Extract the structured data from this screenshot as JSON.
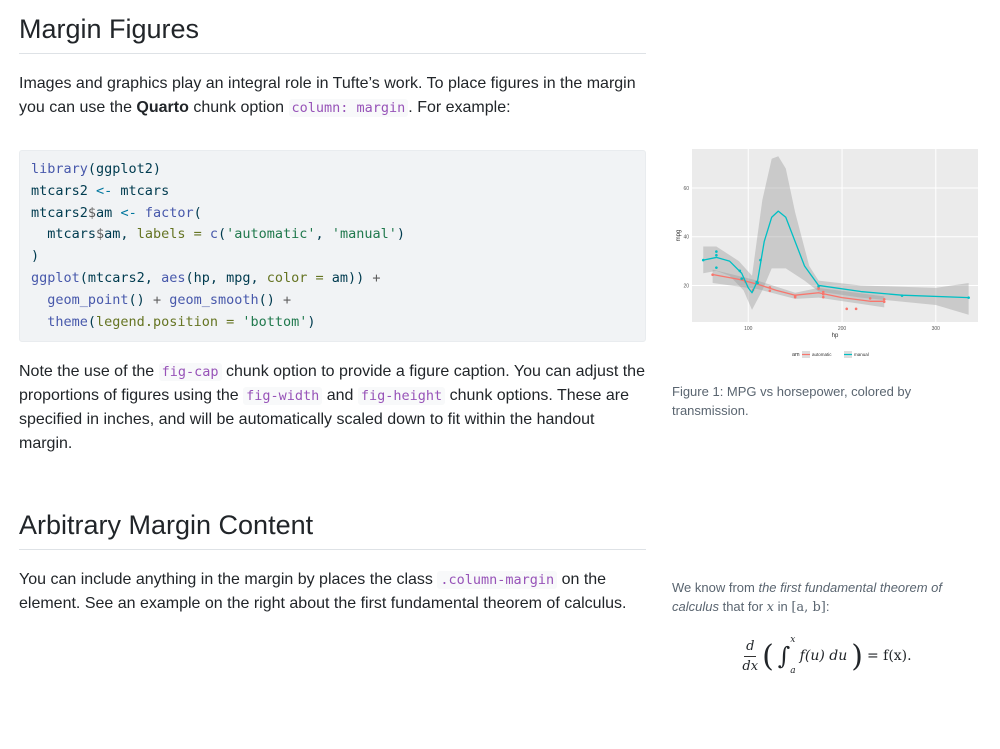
{
  "section1": {
    "title": "Margin Figures",
    "intro_a": "Images and graphics play an integral role in Tufte’s work. To place figures in the margin you can use the ",
    "intro_bold": "Quarto",
    "intro_b": " chunk option ",
    "intro_code": "column: margin",
    "intro_c": ". For example:",
    "note_a": "Note the use of the ",
    "note_code1": "fig-cap",
    "note_b": " chunk option to provide a figure caption. You can adjust the proportions of figures using the ",
    "note_code2": "fig-width",
    "note_c": " and ",
    "note_code3": "fig-height",
    "note_d": " chunk options. These are specified in inches, and will be automatically scaled down to fit within the handout margin.",
    "figure_caption": "Figure 1: MPG vs horsepower, colored by transmission."
  },
  "section2": {
    "title": "Arbitrary Margin Content",
    "text_a": "You can include anything in the margin by places the class ",
    "text_code": ".column-margin",
    "text_b": " on the element. See an example on the right about the first fundamental theorem of calculus.",
    "margin_a": "We know from ",
    "margin_em": "the first fundamental theorem of calculus",
    "margin_b": " that for ",
    "margin_x": "x",
    "margin_c": " in ",
    "margin_interval": "[a, b]",
    "margin_d": ":",
    "eq_num": "d",
    "eq_den": "dx",
    "eq_body": "f(u) du",
    "eq_upper": "x",
    "eq_lower": "a",
    "eq_rhs": "= f(x)."
  },
  "chart_data": {
    "type": "scatter",
    "xlabel": "hp",
    "ylabel": "mpg",
    "xlim": [
      40,
      345
    ],
    "ylim": [
      5,
      76
    ],
    "xticks": [
      100,
      200,
      300
    ],
    "yticks": [
      20,
      40,
      60
    ],
    "grid": true,
    "legend_position": "bottom",
    "legend_title": "am",
    "series": [
      {
        "name": "automatic",
        "color": "#f8766d",
        "points": [
          [
            62,
            24.4
          ],
          [
            95,
            22.8
          ],
          [
            97,
            21.5
          ],
          [
            105,
            18.1
          ],
          [
            110,
            21.4
          ],
          [
            123,
            19.2
          ],
          [
            123,
            17.8
          ],
          [
            150,
            15.2
          ],
          [
            150,
            15.5
          ],
          [
            175,
            18.7
          ],
          [
            175,
            19.2
          ],
          [
            180,
            16.4
          ],
          [
            180,
            17.3
          ],
          [
            180,
            15.2
          ],
          [
            205,
            10.4
          ],
          [
            215,
            10.4
          ],
          [
            230,
            14.7
          ],
          [
            245,
            14.3
          ],
          [
            245,
            13.3
          ]
        ],
        "smooth": [
          [
            62,
            24.5
          ],
          [
            90,
            22.5
          ],
          [
            110,
            20.5
          ],
          [
            130,
            18
          ],
          [
            150,
            16
          ],
          [
            175,
            17
          ],
          [
            200,
            15
          ],
          [
            230,
            13.5
          ],
          [
            245,
            13.5
          ]
        ],
        "band_upper": [
          [
            62,
            26.5
          ],
          [
            110,
            22
          ],
          [
            150,
            17
          ],
          [
            175,
            19
          ],
          [
            245,
            15.5
          ]
        ],
        "band_lower": [
          [
            62,
            21
          ],
          [
            110,
            18.5
          ],
          [
            150,
            14.5
          ],
          [
            175,
            15
          ],
          [
            245,
            11
          ]
        ]
      },
      {
        "name": "manual",
        "color": "#00bfc4",
        "points": [
          [
            52,
            30.4
          ],
          [
            66,
            33.9
          ],
          [
            66,
            32.4
          ],
          [
            66,
            27.3
          ],
          [
            91,
            26
          ],
          [
            93,
            22.8
          ],
          [
            109,
            21.4
          ],
          [
            110,
            21
          ],
          [
            113,
            30.4
          ],
          [
            175,
            19.7
          ],
          [
            264,
            15.8
          ],
          [
            335,
            15
          ]
        ],
        "smooth": [
          [
            52,
            30.4
          ],
          [
            66,
            31.5
          ],
          [
            80,
            30
          ],
          [
            93,
            25
          ],
          [
            100,
            19
          ],
          [
            104,
            17
          ],
          [
            110,
            22
          ],
          [
            117,
            38
          ],
          [
            125,
            48
          ],
          [
            132,
            50.5
          ],
          [
            140,
            48
          ],
          [
            150,
            38
          ],
          [
            160,
            28
          ],
          [
            175,
            20
          ],
          [
            220,
            17.5
          ],
          [
            264,
            16
          ],
          [
            335,
            15
          ]
        ],
        "band_upper": [
          [
            52,
            36
          ],
          [
            66,
            36
          ],
          [
            90,
            30
          ],
          [
            104,
            24
          ],
          [
            115,
            55
          ],
          [
            125,
            72
          ],
          [
            132,
            73
          ],
          [
            140,
            68
          ],
          [
            150,
            50
          ],
          [
            165,
            28
          ],
          [
            175,
            22
          ],
          [
            220,
            20
          ],
          [
            300,
            19
          ],
          [
            335,
            21
          ]
        ],
        "band_lower": [
          [
            52,
            25
          ],
          [
            66,
            26
          ],
          [
            80,
            24
          ],
          [
            95,
            18
          ],
          [
            104,
            10
          ],
          [
            115,
            18
          ],
          [
            125,
            27
          ],
          [
            140,
            27
          ],
          [
            160,
            22
          ],
          [
            175,
            17.5
          ],
          [
            220,
            15
          ],
          [
            300,
            12
          ],
          [
            335,
            8
          ]
        ]
      }
    ]
  }
}
